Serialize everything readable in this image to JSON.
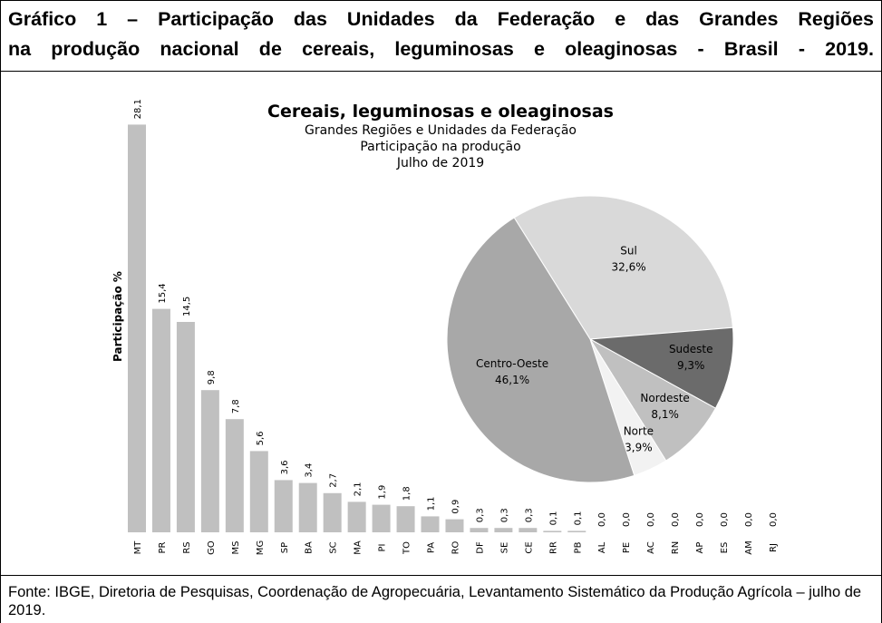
{
  "header": {
    "title": [
      "Gráfico 1 – Participação das Unidades da Federação e das Grandes Regiões",
      "na produção nacional de cereais, leguminosas e oleaginosas - Brasil - 2019."
    ]
  },
  "chart_data": [
    {
      "type": "bar",
      "y_label": "Participação %",
      "color": "#c0c0c0",
      "categories": [
        "MT",
        "PR",
        "RS",
        "GO",
        "MS",
        "MG",
        "SP",
        "BA",
        "SC",
        "MA",
        "PI",
        "TO",
        "PA",
        "RO",
        "DF",
        "SE",
        "CE",
        "RR",
        "PB",
        "AL",
        "PE",
        "AC",
        "RN",
        "AP",
        "ES",
        "AM",
        "RJ"
      ],
      "values": [
        28.1,
        15.4,
        14.5,
        9.8,
        7.8,
        5.6,
        3.6,
        3.4,
        2.7,
        2.1,
        1.9,
        1.8,
        1.1,
        0.9,
        0.3,
        0.3,
        0.3,
        0.1,
        0.1,
        0.0,
        0.0,
        0.0,
        0.0,
        0.0,
        0.0,
        0.0,
        0.0
      ],
      "value_labels": [
        "28,1",
        "15,4",
        "14,5",
        "9,8",
        "7,8",
        "5,6",
        "3,6",
        "3,4",
        "2,7",
        "2,1",
        "1,9",
        "1,8",
        "1,1",
        "0,9",
        "0,3",
        "0,3",
        "0,3",
        "0,1",
        "0,1",
        "0,0",
        "0,0",
        "0,0",
        "0,0",
        "0,0",
        "0,0",
        "0,0",
        "0,0"
      ]
    },
    {
      "type": "pie",
      "title": "Cereais, leguminosas e oleaginosas",
      "subtitle": [
        "Grandes Regiões e Unidades da Federação",
        "Participação na produção",
        "Julho de 2019"
      ],
      "categories": [
        "Sul",
        "Sudeste",
        "Nordeste",
        "Norte",
        "Centro-Oeste"
      ],
      "values": [
        32.6,
        9.3,
        8.1,
        3.9,
        46.1
      ],
      "value_labels": [
        "32,6%",
        "9,3%",
        "8,1%",
        "3,9%",
        "46,1%"
      ],
      "colors": [
        "#d9d9d9",
        "#6b6b6b",
        "#c0c0c0",
        "#f2f2f2",
        "#a8a8a8"
      ]
    }
  ],
  "source": "Fonte: IBGE, Diretoria de Pesquisas, Coordenação de Agropecuária, Levantamento Sistemático da Produção Agrícola – julho de 2019."
}
